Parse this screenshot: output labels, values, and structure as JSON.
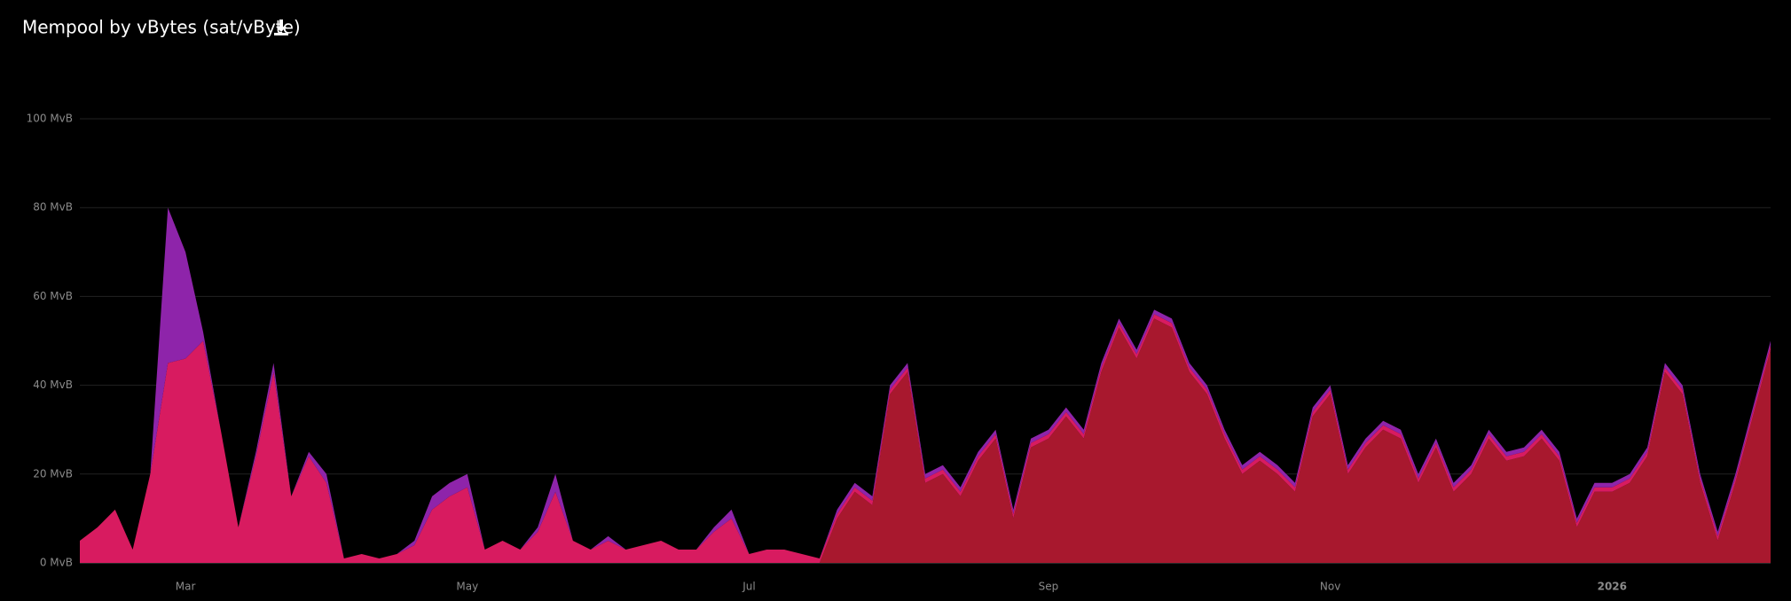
{
  "chart_data": {
    "type": "stacked_area",
    "title": "Mempool by vBytes (sat/vByte)",
    "categories": [
      null,
      null,
      null,
      null,
      null,
      null,
      "Mar",
      null,
      null,
      null,
      null,
      null,
      null,
      null,
      null,
      null,
      null,
      null,
      null,
      null,
      null,
      null,
      "May",
      null,
      null,
      null,
      null,
      null,
      null,
      null,
      null,
      null,
      null,
      null,
      null,
      null,
      null,
      null,
      "Jul",
      null,
      null,
      null,
      null,
      null,
      null,
      null,
      null,
      null,
      null,
      null,
      null,
      null,
      null,
      null,
      null,
      "Sep",
      null,
      null,
      null,
      null,
      null,
      null,
      null,
      null,
      null,
      null,
      null,
      null,
      null,
      null,
      null,
      "Nov",
      null,
      null,
      null,
      null,
      null,
      null,
      null,
      null,
      null,
      null,
      null,
      null,
      null,
      null,
      null,
      "2026",
      null,
      null,
      null,
      null,
      null,
      null,
      null,
      null,
      null
    ],
    "ylim": [
      0,
      100
    ],
    "yticks": [
      {
        "value": 0,
        "label": "0 MvB"
      },
      {
        "value": 20,
        "label": "20 MvB"
      },
      {
        "value": 40,
        "label": "40 MvB"
      },
      {
        "value": 60,
        "label": "60 MvB"
      },
      {
        "value": 80,
        "label": "80 MvB"
      },
      {
        "value": 100,
        "label": "100 MvB"
      }
    ],
    "grid": true,
    "series": [
      {
        "color": "#a8182e",
        "values": [
          0,
          0,
          0,
          0,
          0,
          0,
          0,
          0,
          0,
          0,
          0,
          0,
          0,
          0,
          0,
          0,
          0,
          0,
          0,
          0,
          0,
          0,
          0,
          0,
          0,
          0,
          0,
          0,
          0,
          0,
          0,
          0,
          0,
          0,
          0,
          0,
          0,
          0,
          0,
          0,
          0,
          0,
          0,
          10,
          16,
          13,
          38,
          43,
          18,
          20,
          15,
          23,
          28,
          10,
          26,
          28,
          33,
          28,
          43,
          53,
          46,
          55,
          53,
          43,
          38,
          28,
          20,
          23,
          20,
          16,
          33,
          38,
          20,
          26,
          30,
          28,
          18,
          26,
          16,
          20,
          28,
          23,
          24,
          28,
          23,
          8,
          16,
          16,
          18,
          24,
          43,
          38,
          18,
          5,
          18,
          33,
          48
        ]
      },
      {
        "color": "#d81b60",
        "values": [
          5,
          8,
          12,
          3,
          20,
          45,
          46,
          50,
          30,
          8,
          24,
          43,
          15,
          24,
          18,
          1,
          2,
          1,
          2,
          4,
          12,
          15,
          17,
          3,
          5,
          3,
          7,
          16,
          5,
          3,
          5,
          3,
          4,
          5,
          3,
          3,
          7,
          10,
          2,
          3,
          3,
          2,
          1,
          1,
          1,
          1,
          1,
          1,
          1,
          1,
          1,
          1,
          1,
          1,
          1,
          1,
          1,
          1,
          1,
          1,
          1,
          1,
          1,
          1,
          1,
          1,
          1,
          1,
          1,
          1,
          1,
          1,
          1,
          1,
          1,
          1,
          1,
          1,
          1,
          1,
          1,
          1,
          1,
          1,
          1,
          1,
          1,
          1,
          1,
          1,
          1,
          1,
          1,
          1,
          1,
          1,
          1
        ]
      },
      {
        "color": "#8e24aa",
        "values": [
          0,
          0,
          0,
          0,
          0,
          35,
          24,
          2,
          0,
          0,
          1,
          2,
          0,
          1,
          2,
          0,
          0,
          0,
          0,
          1,
          3,
          3,
          3,
          0,
          0,
          0,
          1,
          4,
          0,
          0,
          1,
          0,
          0,
          0,
          0,
          0,
          1,
          2,
          0,
          0,
          0,
          0,
          0,
          1,
          1,
          1,
          1,
          1,
          1,
          1,
          1,
          1,
          1,
          1,
          1,
          1,
          1,
          1,
          1,
          1,
          1,
          1,
          1,
          1,
          1,
          1,
          1,
          1,
          1,
          1,
          1,
          1,
          1,
          1,
          1,
          1,
          1,
          1,
          1,
          1,
          1,
          1,
          1,
          1,
          1,
          1,
          1,
          1,
          1,
          1,
          1,
          1,
          1,
          1,
          1,
          1,
          1
        ]
      }
    ]
  }
}
